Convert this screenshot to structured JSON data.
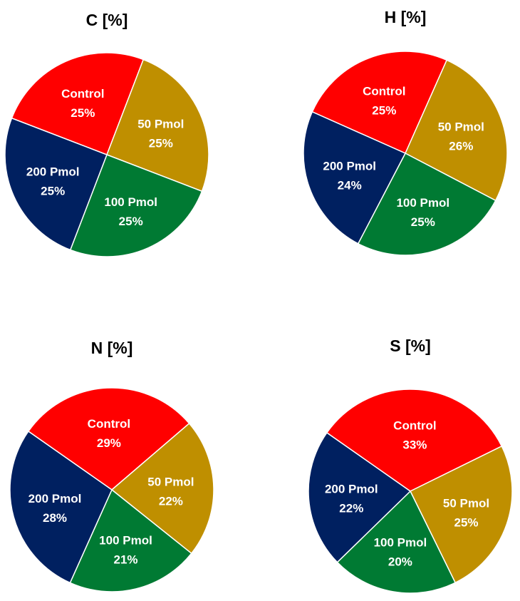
{
  "chart_data": [
    {
      "type": "pie",
      "title": "C [%]",
      "slices": [
        {
          "label": "Control",
          "value": 25,
          "value_label": "25%",
          "color": "#ff0000"
        },
        {
          "label": "50 Pmol",
          "value": 25,
          "value_label": "25%",
          "color": "#bf8f00"
        },
        {
          "label": "100 Pmol",
          "value": 25,
          "value_label": "25%",
          "color": "#007a33"
        },
        {
          "label": "200 Pmol",
          "value": 25,
          "value_label": "25%",
          "color": "#002060"
        }
      ]
    },
    {
      "type": "pie",
      "title": "H [%]",
      "slices": [
        {
          "label": "Control",
          "value": 25,
          "value_label": "25%",
          "color": "#ff0000"
        },
        {
          "label": "50 Pmol",
          "value": 26,
          "value_label": "26%",
          "color": "#bf8f00"
        },
        {
          "label": "100 Pmol",
          "value": 25,
          "value_label": "25%",
          "color": "#007a33"
        },
        {
          "label": "200 Pmol",
          "value": 24,
          "value_label": "24%",
          "color": "#002060"
        }
      ]
    },
    {
      "type": "pie",
      "title": "N [%]",
      "slices": [
        {
          "label": "Control",
          "value": 29,
          "value_label": "29%",
          "color": "#ff0000"
        },
        {
          "label": "50 Pmol",
          "value": 22,
          "value_label": "22%",
          "color": "#bf8f00"
        },
        {
          "label": "100 Pmol",
          "value": 21,
          "value_label": "21%",
          "color": "#007a33"
        },
        {
          "label": "200 Pmol",
          "value": 28,
          "value_label": "28%",
          "color": "#002060"
        }
      ]
    },
    {
      "type": "pie",
      "title": "S [%]",
      "slices": [
        {
          "label": "Control",
          "value": 33,
          "value_label": "33%",
          "color": "#ff0000"
        },
        {
          "label": "50 Pmol",
          "value": 25,
          "value_label": "25%",
          "color": "#bf8f00"
        },
        {
          "label": "100 Pmol",
          "value": 20,
          "value_label": "20%",
          "color": "#007a33"
        },
        {
          "label": "200 Pmol",
          "value": 22,
          "value_label": "22%",
          "color": "#002060"
        }
      ]
    }
  ]
}
